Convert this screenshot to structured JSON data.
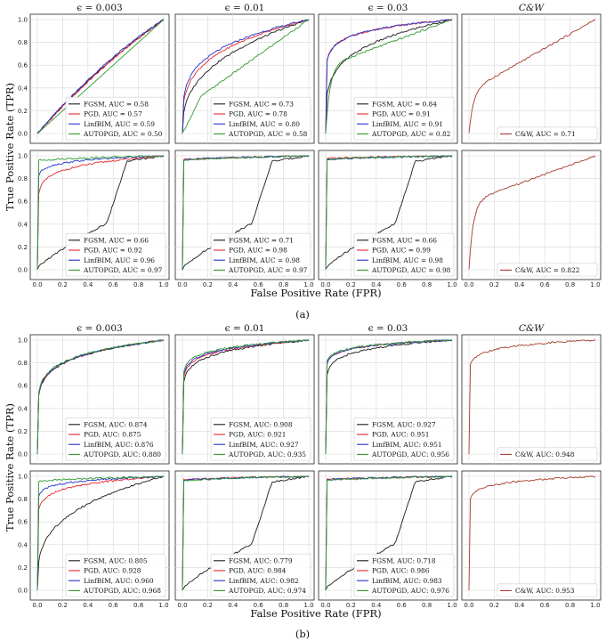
{
  "colors": {
    "FGSM": "#1a1a1a",
    "PGD": "#e8262b",
    "LinfBIM": "#2233cc",
    "AUTOPGD": "#2e9a2e",
    "CW": "#a33a2a"
  },
  "ylabel": "True Positive Rate (TPR)",
  "xlabel": "False Positive Rate (FPR)",
  "x_ticks": [
    "0.0",
    "0.2",
    "0.4",
    "0.6",
    "0.8",
    "1.0"
  ],
  "y_ticks": [
    "0.0",
    "0.2",
    "0.4",
    "0.6",
    "0.8",
    "1.0"
  ],
  "chart_data": [
    {
      "type": "line",
      "sub_caption": "(a)",
      "columns": [
        "ϵ = 0.003",
        "ϵ = 0.01",
        "ϵ = 0.03",
        "C&W"
      ],
      "xlim": [
        0,
        1
      ],
      "ylim": [
        0,
        1
      ],
      "rows": [
        [
          {
            "series": [
              {
                "name": "FGSM",
                "auc_label": "FGSM, AUC = 0.58",
                "shape": "near_diag",
                "auc": 0.58
              },
              {
                "name": "PGD",
                "auc_label": "PGD, AUC = 0.57",
                "shape": "near_diag",
                "auc": 0.57
              },
              {
                "name": "LinfBIM",
                "auc_label": "LinfBIM, AUC = 0.59",
                "shape": "near_diag",
                "auc": 0.59
              },
              {
                "name": "AUTOPGD",
                "auc_label": "AUTOPGD, AUC = 0.50",
                "shape": "diag",
                "auc": 0.5
              }
            ]
          },
          {
            "series": [
              {
                "name": "FGSM",
                "auc_label": "FGSM, AUC = 0.73",
                "shape": "concave",
                "auc": 0.73
              },
              {
                "name": "PGD",
                "auc_label": "PGD, AUC = 0.78",
                "shape": "concave",
                "auc": 0.78
              },
              {
                "name": "LinfBIM",
                "auc_label": "LinfBIM, AUC = 0.80",
                "shape": "concave",
                "auc": 0.8
              },
              {
                "name": "AUTOPGD",
                "auc_label": "AUTOPGD, AUC = 0.58",
                "shape": "sshape",
                "auc": 0.58
              }
            ]
          },
          {
            "series": [
              {
                "name": "FGSM",
                "auc_label": "FGSM, AUC = 0.84",
                "shape": "concave_slow",
                "auc": 0.84
              },
              {
                "name": "PGD",
                "auc_label": "PGD, AUC = 0.91",
                "shape": "concave",
                "auc": 0.91
              },
              {
                "name": "LinfBIM",
                "auc_label": "LinfBIM, AUC = 0.91",
                "shape": "concave",
                "auc": 0.91
              },
              {
                "name": "AUTOPGD",
                "auc_label": "AUTOPGD, AUC = 0.82",
                "shape": "jump_linear",
                "auc": 0.82
              }
            ]
          },
          {
            "series": [
              {
                "name": "C&W",
                "auc_label": "C&W, AUC = 0.71",
                "shape": "jump_linear",
                "auc": 0.71
              }
            ]
          }
        ],
        [
          {
            "series": [
              {
                "name": "FGSM",
                "auc_label": "FGSM, AUC = 0.66",
                "shape": "stepup",
                "auc": 0.66
              },
              {
                "name": "PGD",
                "auc_label": "PGD, AUC = 0.92",
                "shape": "concave",
                "auc": 0.92
              },
              {
                "name": "LinfBIM",
                "auc_label": "LinfBIM, AUC = 0.96",
                "shape": "concave",
                "auc": 0.96
              },
              {
                "name": "AUTOPGD",
                "auc_label": "AUTOPGD, AUC = 0.97",
                "shape": "jump",
                "auc": 0.97
              }
            ]
          },
          {
            "series": [
              {
                "name": "FGSM",
                "auc_label": "FGSM, AUC = 0.71",
                "shape": "stepup",
                "auc": 0.71
              },
              {
                "name": "PGD",
                "auc_label": "PGD, AUC = 0.98",
                "shape": "jump",
                "auc": 0.98
              },
              {
                "name": "LinfBIM",
                "auc_label": "LinfBIM, AUC = 0.98",
                "shape": "jump",
                "auc": 0.98
              },
              {
                "name": "AUTOPGD",
                "auc_label": "AUTOPGD, AUC = 0.97",
                "shape": "jump",
                "auc": 0.97
              }
            ]
          },
          {
            "series": [
              {
                "name": "FGSM",
                "auc_label": "FGSM, AUC = 0.66",
                "shape": "stepup",
                "auc": 0.66
              },
              {
                "name": "PGD",
                "auc_label": "PGD, AUC = 0.99",
                "shape": "jump",
                "auc": 0.99
              },
              {
                "name": "LinfBIM",
                "auc_label": "LinfBIM, AUC = 0.98",
                "shape": "jump",
                "auc": 0.98
              },
              {
                "name": "AUTOPGD",
                "auc_label": "AUTOPGD, AUC = 0.98",
                "shape": "jump",
                "auc": 0.98
              }
            ]
          },
          {
            "series": [
              {
                "name": "C&W",
                "auc_label": "C&W, AUC = 0.822",
                "shape": "jump_linear",
                "auc": 0.822
              }
            ]
          }
        ]
      ]
    },
    {
      "type": "line",
      "sub_caption": "(b)",
      "columns": [
        "ϵ = 0.003",
        "ϵ = 0.01",
        "ϵ = 0.03",
        "C&W"
      ],
      "xlim": [
        0,
        1
      ],
      "ylim": [
        0,
        1
      ],
      "rows": [
        [
          {
            "series": [
              {
                "name": "FGSM",
                "auc_label": "FGSM, AUC: 0.874",
                "shape": "concave",
                "auc": 0.874
              },
              {
                "name": "PGD",
                "auc_label": "PGD, AUC: 0.875",
                "shape": "concave",
                "auc": 0.875
              },
              {
                "name": "LinfBIM",
                "auc_label": "LinfBIM, AUC: 0.876",
                "shape": "concave",
                "auc": 0.876
              },
              {
                "name": "AUTOPGD",
                "auc_label": "AUTOPGD, AUC: 0.880",
                "shape": "concave",
                "auc": 0.88
              }
            ]
          },
          {
            "series": [
              {
                "name": "FGSM",
                "auc_label": "FGSM, AUC: 0.908",
                "shape": "concave",
                "auc": 0.908
              },
              {
                "name": "PGD",
                "auc_label": "PGD, AUC: 0.921",
                "shape": "concave",
                "auc": 0.921
              },
              {
                "name": "LinfBIM",
                "auc_label": "LinfBIM, AUC: 0.927",
                "shape": "concave",
                "auc": 0.927
              },
              {
                "name": "AUTOPGD",
                "auc_label": "AUTOPGD, AUC: 0.935",
                "shape": "concave",
                "auc": 0.935
              }
            ]
          },
          {
            "series": [
              {
                "name": "FGSM",
                "auc_label": "FGSM, AUC: 0.927",
                "shape": "concave",
                "auc": 0.927
              },
              {
                "name": "PGD",
                "auc_label": "PGD, AUC: 0.951",
                "shape": "concave",
                "auc": 0.951
              },
              {
                "name": "LinfBIM",
                "auc_label": "LinfBIM, AUC: 0.951",
                "shape": "concave",
                "auc": 0.951
              },
              {
                "name": "AUTOPGD",
                "auc_label": "AUTOPGD, AUC: 0.956",
                "shape": "concave",
                "auc": 0.956
              }
            ]
          },
          {
            "series": [
              {
                "name": "C&W",
                "auc_label": "C&W, AUC: 0.948",
                "shape": "concave",
                "auc": 0.948
              }
            ]
          }
        ],
        [
          {
            "series": [
              {
                "name": "FGSM",
                "auc_label": "FGSM, AUC: 0.805",
                "shape": "concave_slow",
                "auc": 0.805
              },
              {
                "name": "PGD",
                "auc_label": "PGD, AUC: 0.928",
                "shape": "concave",
                "auc": 0.928
              },
              {
                "name": "LinfBIM",
                "auc_label": "LinfBIM, AUC: 0.960",
                "shape": "concave",
                "auc": 0.96
              },
              {
                "name": "AUTOPGD",
                "auc_label": "AUTOPGD, AUC: 0.968",
                "shape": "jump",
                "auc": 0.968
              }
            ]
          },
          {
            "series": [
              {
                "name": "FGSM",
                "auc_label": "FGSM, AUC: 0.779",
                "shape": "stepup",
                "auc": 0.779
              },
              {
                "name": "PGD",
                "auc_label": "PGD, AUC: 0.984",
                "shape": "jump",
                "auc": 0.984
              },
              {
                "name": "LinfBIM",
                "auc_label": "LinfBIM, AUC: 0.982",
                "shape": "jump",
                "auc": 0.982
              },
              {
                "name": "AUTOPGD",
                "auc_label": "AUTOPGD, AUC: 0.974",
                "shape": "jump",
                "auc": 0.974
              }
            ]
          },
          {
            "series": [
              {
                "name": "FGSM",
                "auc_label": "FGSM, AUC: 0.718",
                "shape": "stepup",
                "auc": 0.718
              },
              {
                "name": "PGD",
                "auc_label": "PGD, AUC: 0.986",
                "shape": "jump",
                "auc": 0.986
              },
              {
                "name": "LinfBIM",
                "auc_label": "LinfBIM, AUC: 0.983",
                "shape": "jump",
                "auc": 0.983
              },
              {
                "name": "AUTOPGD",
                "auc_label": "AUTOPGD, AUC: 0.976",
                "shape": "jump",
                "auc": 0.976
              }
            ]
          },
          {
            "series": [
              {
                "name": "C&W",
                "auc_label": "C&W, AUC: 0.953",
                "shape": "concave",
                "auc": 0.953
              }
            ]
          }
        ]
      ]
    }
  ]
}
